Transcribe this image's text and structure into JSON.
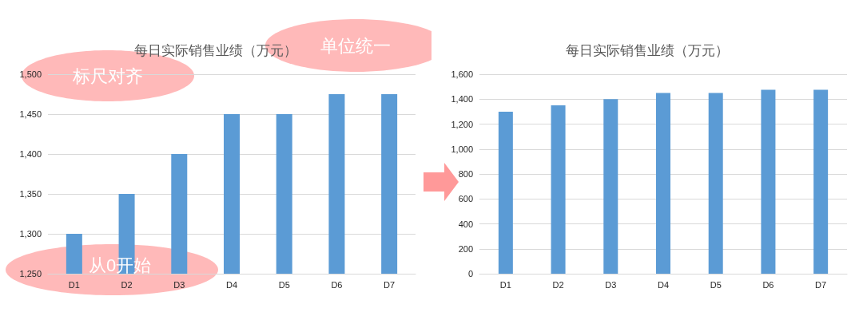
{
  "chart_data": [
    {
      "type": "bar",
      "title": "每日实际销售业绩（万元）",
      "categories": [
        "D1",
        "D2",
        "D3",
        "D4",
        "D5",
        "D6",
        "D7"
      ],
      "values": [
        1300,
        1350,
        1400,
        1450,
        1450,
        1475,
        1475
      ],
      "color": "#5b9bd5",
      "ylim": [
        1250,
        1500
      ],
      "yticks": [
        {
          "value": 1250,
          "label": "1,250"
        },
        {
          "value": 1300,
          "label": "1,300"
        },
        {
          "value": 1350,
          "label": "1,350"
        },
        {
          "value": 1400,
          "label": "1,400"
        },
        {
          "value": 1450,
          "label": "1,450"
        },
        {
          "value": 1500,
          "label": "1,500"
        }
      ],
      "grid": "y",
      "annotations": [
        "标尺对齐",
        "单位统一",
        "从0开始"
      ]
    },
    {
      "type": "bar",
      "title": "每日实际销售业绩（万元）",
      "categories": [
        "D1",
        "D2",
        "D3",
        "D4",
        "D5",
        "D6",
        "D7"
      ],
      "values": [
        1300,
        1350,
        1400,
        1450,
        1450,
        1475,
        1475
      ],
      "color": "#5b9bd5",
      "ylim": [
        0,
        1600
      ],
      "yticks": [
        0,
        200,
        400,
        600,
        800,
        {
          "value": 1000,
          "label": "1,000"
        },
        {
          "value": 1200,
          "label": "1,200"
        },
        {
          "value": 1400,
          "label": "1,400"
        },
        {
          "value": 1600,
          "label": "1,600"
        }
      ],
      "grid": "y"
    }
  ]
}
